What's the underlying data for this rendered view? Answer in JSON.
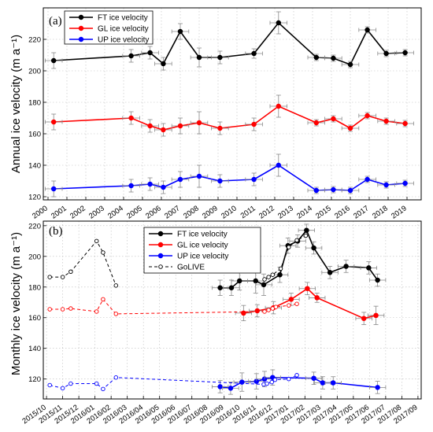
{
  "chart_data": [
    {
      "type": "line",
      "panel_label": "(a)",
      "ylabel": "Annual ice velocity (m a⁻¹)",
      "ylim": [
        118,
        240
      ],
      "yticks": [
        120,
        140,
        160,
        180,
        200,
        220
      ],
      "x_tick_labels": [
        "2000",
        "2001",
        "2002",
        "2003",
        "2004",
        "2005",
        "2006",
        "2007",
        "2008",
        "2009",
        "2010",
        "2011",
        "2012",
        "2013",
        "2014",
        "2015",
        "2016",
        "2017",
        "2018",
        "2019"
      ],
      "legend_position": "top-left",
      "series": [
        {
          "name": "FT ice velocity",
          "color": "#000000",
          "marker": "filled",
          "x": [
            2000.3,
            2004.4,
            2005.4,
            2006.1,
            2007.0,
            2008.0,
            2009.1,
            2010.9,
            2012.2,
            2014.2,
            2015.1,
            2016.0,
            2016.9,
            2017.9,
            2018.9
          ],
          "y": [
            206.5,
            209.5,
            211.5,
            204.5,
            225.0,
            208.5,
            208.5,
            211.0,
            230.5,
            208.5,
            208.0,
            204.0,
            226.0,
            211.0,
            211.5
          ],
          "err": [
            5,
            4,
            4,
            4,
            5,
            6,
            4,
            3,
            7,
            2,
            2,
            2,
            2,
            2,
            2
          ]
        },
        {
          "name": "GL ice velocity",
          "color": "#ff0000",
          "marker": "filled",
          "x": [
            2000.3,
            2004.4,
            2005.4,
            2006.1,
            2007.0,
            2008.0,
            2009.1,
            2010.9,
            2012.2,
            2014.2,
            2015.1,
            2016.0,
            2016.9,
            2017.9,
            2018.9
          ],
          "y": [
            167.5,
            170.0,
            165.0,
            162.5,
            165.0,
            167.0,
            163.5,
            166.0,
            177.5,
            167.0,
            169.5,
            163.5,
            171.5,
            168.0,
            166.5
          ],
          "err": [
            5,
            4,
            4,
            4,
            5,
            7,
            4,
            4,
            7,
            2,
            2,
            2,
            2,
            2,
            2
          ]
        },
        {
          "name": "UP ice velocity",
          "color": "#0000ff",
          "marker": "filled",
          "x": [
            2000.3,
            2004.4,
            2005.4,
            2006.1,
            2007.0,
            2008.0,
            2009.1,
            2010.9,
            2012.2,
            2014.2,
            2015.1,
            2016.0,
            2016.9,
            2017.9,
            2018.9
          ],
          "y": [
            125.0,
            127.0,
            128.0,
            126.0,
            131.0,
            133.0,
            130.0,
            131.0,
            140.0,
            124.0,
            124.5,
            124.0,
            131.0,
            127.5,
            128.5
          ],
          "err": [
            5,
            4,
            4,
            4,
            5,
            7,
            4,
            4,
            7,
            2,
            2,
            2,
            2,
            2,
            2
          ]
        }
      ]
    },
    {
      "type": "line",
      "panel_label": "(b)",
      "ylabel": "Monthly ice velocity (m a⁻¹)",
      "ylim": [
        107,
        223
      ],
      "yticks": [
        120,
        140,
        160,
        180,
        200,
        220
      ],
      "x_tick_labels": [
        "2015/10",
        "2015/11",
        "2015/12",
        "2016/01",
        "2016/02",
        "2016/03",
        "2016/04",
        "2016/05",
        "2016/06",
        "2016/07",
        "2016/08",
        "2016/09",
        "2016/10",
        "2016/11",
        "2016/12",
        "2017/01",
        "2017/02",
        "2017/03",
        "2017/04",
        "2017/05",
        "2017/06",
        "2017/07",
        "2017/08",
        "2017/09"
      ],
      "legend_position": "top-center",
      "series": [
        {
          "name": "FT ice velocity",
          "color": "#000000",
          "marker": "filled",
          "x": [
            10.75,
            11.45,
            11.95,
            12.95,
            13.45,
            14.45,
            14.95,
            15.55,
            16.1,
            16.55,
            17.55,
            18.55,
            19.95,
            20.5
          ],
          "y": [
            179.5,
            179.5,
            184.0,
            184.0,
            181.5,
            188.0,
            207.0,
            210.0,
            217.0,
            205.5,
            189.5,
            193.5,
            192.5,
            184.5
          ],
          "err": [
            5,
            5,
            6,
            8,
            7,
            5,
            5,
            4,
            4,
            4,
            4,
            4,
            4,
            4
          ]
        },
        {
          "name": "GL ice velocity",
          "color": "#ff0000",
          "marker": "filled",
          "x": [
            12.2,
            13.05,
            14.05,
            15.15,
            16.15,
            16.75,
            19.65,
            20.4
          ],
          "y": [
            163.0,
            164.5,
            166.5,
            172.0,
            179.0,
            173.0,
            159.5,
            161.5
          ],
          "err": [
            5,
            4,
            4,
            4,
            4,
            3,
            4,
            6
          ]
        },
        {
          "name": "UP ice velocity",
          "color": "#0000ff",
          "marker": "filled",
          "x": [
            10.75,
            11.4,
            12.1,
            13.0,
            13.5,
            14.0,
            16.55,
            17.1,
            17.75,
            20.5
          ],
          "y": [
            115.0,
            114.0,
            118.0,
            118.5,
            120.0,
            121.0,
            120.5,
            117.5,
            117.5,
            114.5
          ],
          "err": [
            4,
            4,
            6,
            5,
            5,
            5,
            4,
            4,
            4,
            4
          ]
        },
        {
          "name": "GoLIVE",
          "color": "#000000",
          "marker": "open",
          "dashed": true,
          "x": [
            0.2,
            1.0,
            1.5,
            3.1,
            3.5,
            4.3
          ],
          "y": [
            186.5,
            186.5,
            190.0,
            210.0,
            202.5,
            181.0
          ],
          "err": [
            0,
            0,
            0,
            0,
            0,
            0
          ]
        },
        {
          "name": "",
          "color": "#ff0000",
          "marker": "open",
          "dashed": true,
          "x": [
            0.2,
            1.0,
            1.5,
            3.1,
            3.5,
            4.3,
            13.5,
            13.75,
            14.0,
            14.2,
            15.0,
            15.5
          ],
          "y": [
            165.5,
            165.5,
            166.0,
            164.0,
            172.0,
            162.5,
            164.0,
            165.0,
            166.0,
            167.0,
            168.0,
            169.0
          ],
          "err": [
            0,
            0,
            0,
            0,
            0,
            0,
            0,
            0,
            0,
            0,
            0,
            0
          ]
        },
        {
          "name": "",
          "color": "#0000ff",
          "marker": "open",
          "dashed": true,
          "x": [
            0.2,
            1.0,
            1.5,
            3.1,
            3.5,
            4.3,
            13.45,
            13.65,
            13.95,
            14.15,
            15.0,
            15.5
          ],
          "y": [
            116.0,
            114.0,
            117.0,
            117.0,
            113.5,
            121.0,
            116.5,
            117.0,
            118.0,
            119.5,
            120.0,
            122.5
          ],
          "err": [
            0,
            0,
            0,
            0,
            0,
            0,
            0,
            0,
            0,
            0,
            0,
            0
          ]
        },
        {
          "name": "",
          "color": "#000000",
          "marker": "open",
          "dashed": true,
          "x": [
            13.5,
            13.75,
            14.0,
            14.5,
            15.0,
            15.5,
            16.05
          ],
          "y": [
            185.0,
            186.5,
            188.0,
            192.0,
            206.0,
            210.5,
            213.5
          ],
          "err": [
            0,
            0,
            0,
            0,
            0,
            0,
            0
          ]
        }
      ]
    }
  ]
}
